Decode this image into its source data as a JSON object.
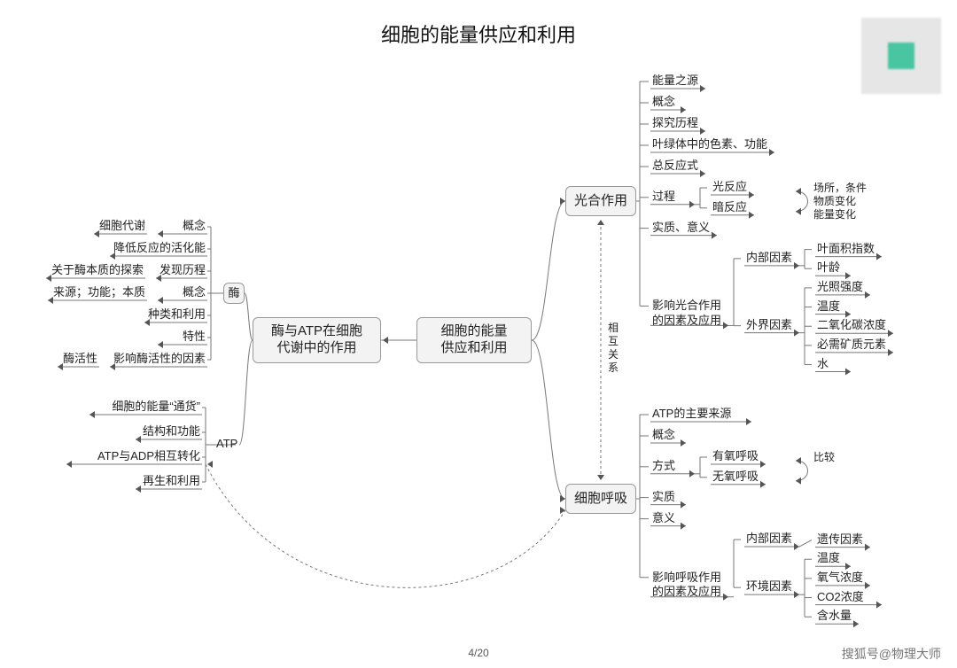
{
  "style": {
    "background": "#ffffff",
    "node_fill": "#f3f3f3",
    "node_border": "#999999",
    "edge_color": "#777777",
    "text_color": "#222222",
    "title_fontsize": 22,
    "node_fontsize": 15,
    "leaf_fontsize": 13,
    "small_fontsize": 12
  },
  "title": "细胞的能量供应和利用",
  "page_number": "4/20",
  "credit": "搜狐号@物理大师",
  "center": {
    "id": "c0",
    "label": "细胞的能量\n供应和利用"
  },
  "left_branch": {
    "node": {
      "id": "b1",
      "label": "酶与ATP在细胞\n代谢中的作用"
    },
    "groups": [
      {
        "tag": "酶",
        "items": [
          {
            "leaf": "概念",
            "extra": "细胞代谢"
          },
          {
            "leaf": "降低反应的活化能"
          },
          {
            "leaf": "发现历程",
            "extra": "关于酶本质的探索"
          },
          {
            "leaf": "概念",
            "extra": "来源；功能；本质"
          },
          {
            "leaf": "种类和利用"
          },
          {
            "leaf": "特性"
          },
          {
            "leaf": "影响酶活性的因素",
            "extra": "酶活性"
          }
        ]
      },
      {
        "tag": "ATP",
        "items": [
          {
            "leaf": "细胞的能量“通货”"
          },
          {
            "leaf": "结构和功能"
          },
          {
            "leaf": "ATP与ADP相互转化"
          },
          {
            "leaf": "再生和利用"
          }
        ]
      }
    ]
  },
  "right_branches": [
    {
      "node": {
        "id": "b2",
        "label": "光合作用"
      },
      "items": [
        {
          "leaf": "能量之源"
        },
        {
          "leaf": "概念"
        },
        {
          "leaf": "探究历程"
        },
        {
          "leaf": "叶绿体中的色素、功能"
        },
        {
          "leaf": "总反应式"
        },
        {
          "leaf": "过程",
          "children": [
            {
              "leaf": "光反应"
            },
            {
              "leaf": "暗反应"
            }
          ],
          "side_note": "场所，条件\n物质变化\n能量变化"
        },
        {
          "leaf": "实质、意义"
        },
        {
          "leaf": "影响光合作用\n的因素及应用",
          "children": [
            {
              "leaf": "内部因素",
              "children": [
                {
                  "leaf": "叶面积指数"
                },
                {
                  "leaf": "叶龄"
                }
              ]
            },
            {
              "leaf": "外界因素",
              "children": [
                {
                  "leaf": "光照强度"
                },
                {
                  "leaf": "温度"
                },
                {
                  "leaf": "二氧化碳浓度"
                },
                {
                  "leaf": "必需矿质元素"
                },
                {
                  "leaf": "水"
                }
              ]
            }
          ]
        }
      ]
    },
    {
      "node": {
        "id": "b3",
        "label": "细胞呼吸"
      },
      "items": [
        {
          "leaf": "ATP的主要来源"
        },
        {
          "leaf": "概念"
        },
        {
          "leaf": "方式",
          "children": [
            {
              "leaf": "有氧呼吸"
            },
            {
              "leaf": "无氧呼吸"
            }
          ],
          "side_note": "比较"
        },
        {
          "leaf": "实质"
        },
        {
          "leaf": "意义"
        },
        {
          "leaf": "影响呼吸作用\n的因素及应用",
          "children": [
            {
              "leaf": "内部因素",
              "children": [
                {
                  "leaf": "遗传因素"
                }
              ]
            },
            {
              "leaf": "环境因素",
              "children": [
                {
                  "leaf": "温度"
                },
                {
                  "leaf": "氧气浓度"
                },
                {
                  "leaf": "CO2浓度"
                },
                {
                  "leaf": "含水量"
                }
              ]
            }
          ]
        }
      ]
    }
  ],
  "annotations": {
    "between_b2_b3": "相\n互\n关\n系"
  }
}
